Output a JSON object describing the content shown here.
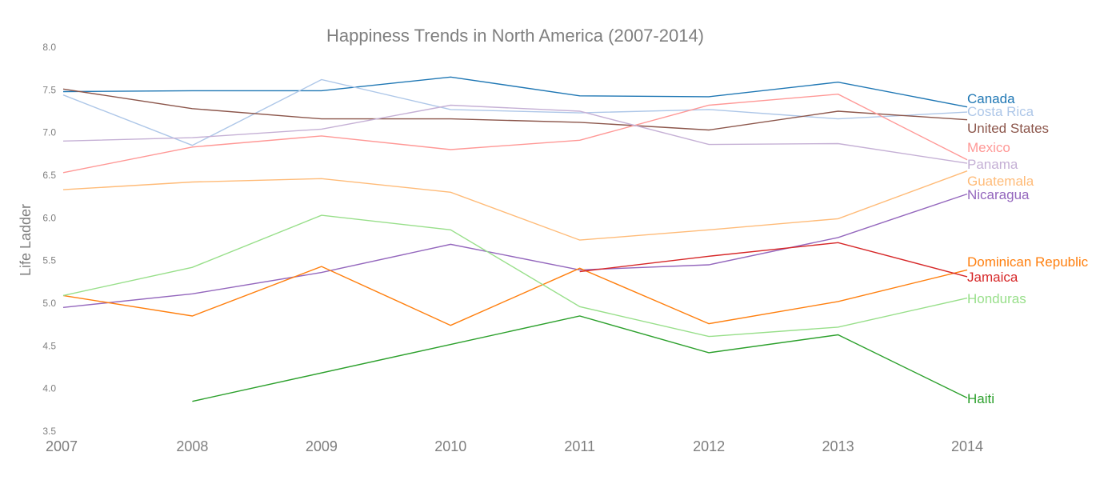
{
  "chart_data": {
    "type": "line",
    "title": "Happiness Trends in North America (2007-2014)",
    "xlabel": "",
    "ylabel": "Life Ladder",
    "x": [
      2007,
      2008,
      2009,
      2010,
      2011,
      2012,
      2013,
      2014
    ],
    "xlim": [
      2007,
      2014
    ],
    "ylim": [
      3.5,
      8.0
    ],
    "yticks": [
      "3.5",
      "4.0",
      "4.5",
      "5.0",
      "5.5",
      "6.0",
      "6.5",
      "7.0",
      "7.5",
      "8.0"
    ],
    "xticks": [
      "2007",
      "2008",
      "2009",
      "2010",
      "2011",
      "2012",
      "2013",
      "2014"
    ],
    "grid": false,
    "legend": "direct labels at line ends",
    "series": [
      {
        "name": "Canada",
        "color": "#1f77b4",
        "values": [
          7.48,
          7.49,
          7.49,
          7.65,
          7.43,
          7.42,
          7.59,
          7.3
        ]
      },
      {
        "name": "Costa Rica",
        "color": "#aec7e8",
        "values": [
          7.44,
          6.85,
          7.62,
          7.27,
          7.23,
          7.27,
          7.16,
          7.24
        ]
      },
      {
        "name": "United States",
        "color": "#8c564b",
        "values": [
          7.51,
          7.28,
          7.16,
          7.16,
          7.12,
          7.03,
          7.25,
          7.15
        ]
      },
      {
        "name": "Mexico",
        "color": "#ff9896",
        "values": [
          6.53,
          6.83,
          6.96,
          6.8,
          6.91,
          7.32,
          7.45,
          6.68
        ]
      },
      {
        "name": "Panama",
        "color": "#c5b0d5",
        "values": [
          6.9,
          6.94,
          7.04,
          7.32,
          7.25,
          6.86,
          6.87,
          6.64
        ]
      },
      {
        "name": "Guatemala",
        "color": "#ffbb78",
        "values": [
          6.33,
          6.42,
          6.46,
          6.3,
          5.74,
          5.86,
          5.99,
          6.55
        ]
      },
      {
        "name": "Nicaragua",
        "color": "#9467bd",
        "values": [
          4.95,
          5.11,
          5.36,
          5.69,
          5.39,
          5.45,
          5.77,
          6.28
        ]
      },
      {
        "name": "Dominican Republic",
        "color": "#ff7f0e",
        "values": [
          5.09,
          4.85,
          5.43,
          4.74,
          5.41,
          4.76,
          5.02,
          5.39
        ]
      },
      {
        "name": "Jamaica",
        "color": "#d62728",
        "values": [
          null,
          null,
          null,
          null,
          5.37,
          5.55,
          5.71,
          5.31
        ]
      },
      {
        "name": "Honduras",
        "color": "#98df8a",
        "values": [
          5.09,
          5.42,
          6.03,
          5.86,
          4.96,
          4.61,
          4.72,
          5.06
        ]
      },
      {
        "name": "Haiti",
        "color": "#2ca02c",
        "values": [
          null,
          3.85,
          null,
          null,
          4.85,
          4.42,
          4.63,
          3.89
        ]
      }
    ]
  }
}
